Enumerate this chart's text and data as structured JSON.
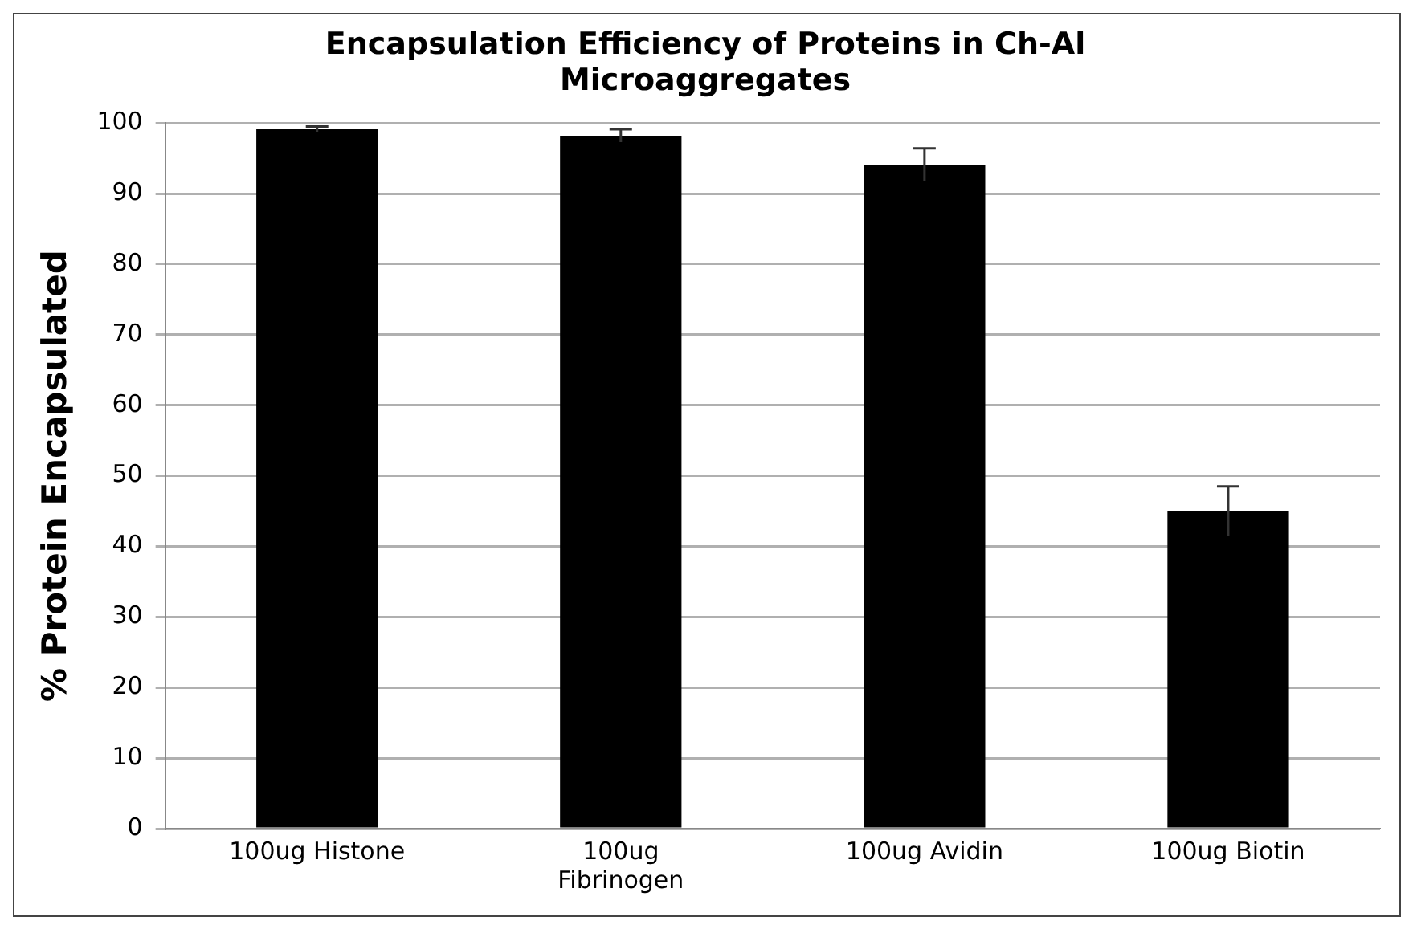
{
  "chart_data": {
    "type": "bar",
    "title": "Encapsulation Efficiency of Proteins in Ch-Al Microaggregates",
    "ylabel": "% Protein Encapsulated",
    "categories": [
      "100ug Histone",
      "100ug Fibrinogen",
      "100ug Avidin",
      "100ug Biotin"
    ],
    "values": [
      99.1,
      98.2,
      94.1,
      45.0
    ],
    "errors": [
      0.4,
      0.9,
      2.3,
      3.5
    ],
    "color": "#000000",
    "ylim": [
      0,
      100
    ],
    "yticks": [
      0,
      10,
      20,
      30,
      40,
      50,
      60,
      70,
      80,
      90,
      100
    ],
    "grid": "y",
    "legend": false
  }
}
